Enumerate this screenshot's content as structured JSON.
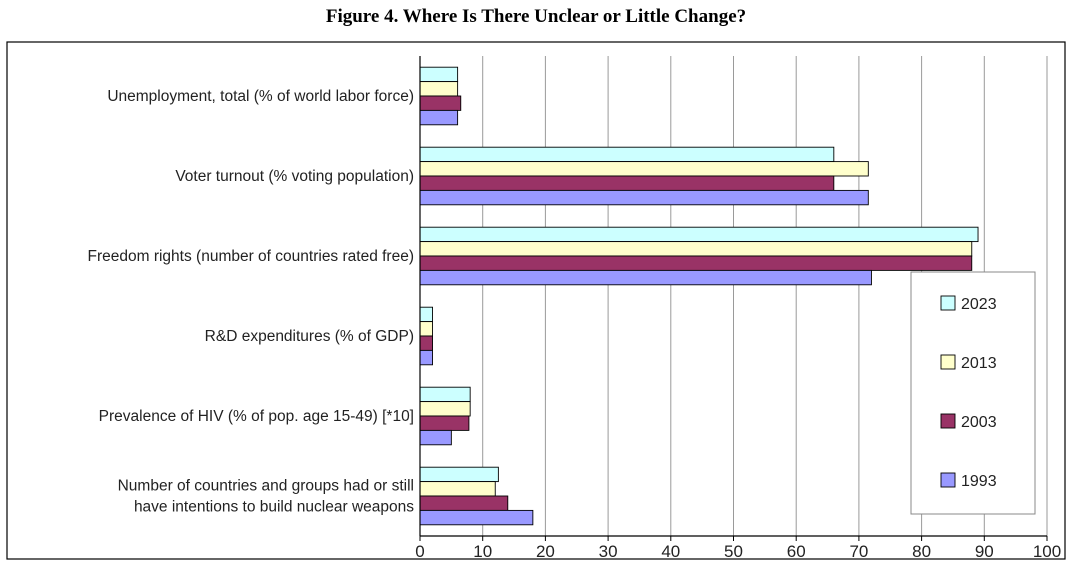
{
  "title": "Figure 4. Where Is There Unclear or Little Change?",
  "chart_data": {
    "type": "bar",
    "orientation": "horizontal",
    "categories": [
      [
        "Unemployment, total (% of world labor force)"
      ],
      [
        "Voter turnout (% voting population)"
      ],
      [
        "Freedom rights (number of countries rated free)"
      ],
      [
        "R&D expenditures (% of GDP)"
      ],
      [
        "Prevalence of HIV (% of pop. age 15-49) [*10]"
      ],
      [
        "Number of countries and groups had or still",
        "have intentions to build nuclear weapons"
      ]
    ],
    "series": [
      {
        "name": "2023",
        "color": "#ccffff",
        "values": [
          6,
          66,
          89,
          2,
          8,
          12.5
        ]
      },
      {
        "name": "2013",
        "color": "#ffffcc",
        "values": [
          6,
          71.5,
          88,
          2,
          8,
          12
        ]
      },
      {
        "name": "2003",
        "color": "#993366",
        "values": [
          6.5,
          66,
          88,
          2,
          7.8,
          14
        ]
      },
      {
        "name": "1993",
        "color": "#9999ff",
        "values": [
          6,
          71.5,
          72,
          2,
          5,
          18
        ]
      }
    ],
    "xlim": [
      0,
      100
    ],
    "xticks": [
      0,
      10,
      20,
      30,
      40,
      50,
      60,
      70,
      80,
      90,
      100
    ],
    "grid": "vertical",
    "legend_position": "right",
    "legend_order": [
      "2023",
      "2013",
      "2003",
      "1993"
    ]
  }
}
